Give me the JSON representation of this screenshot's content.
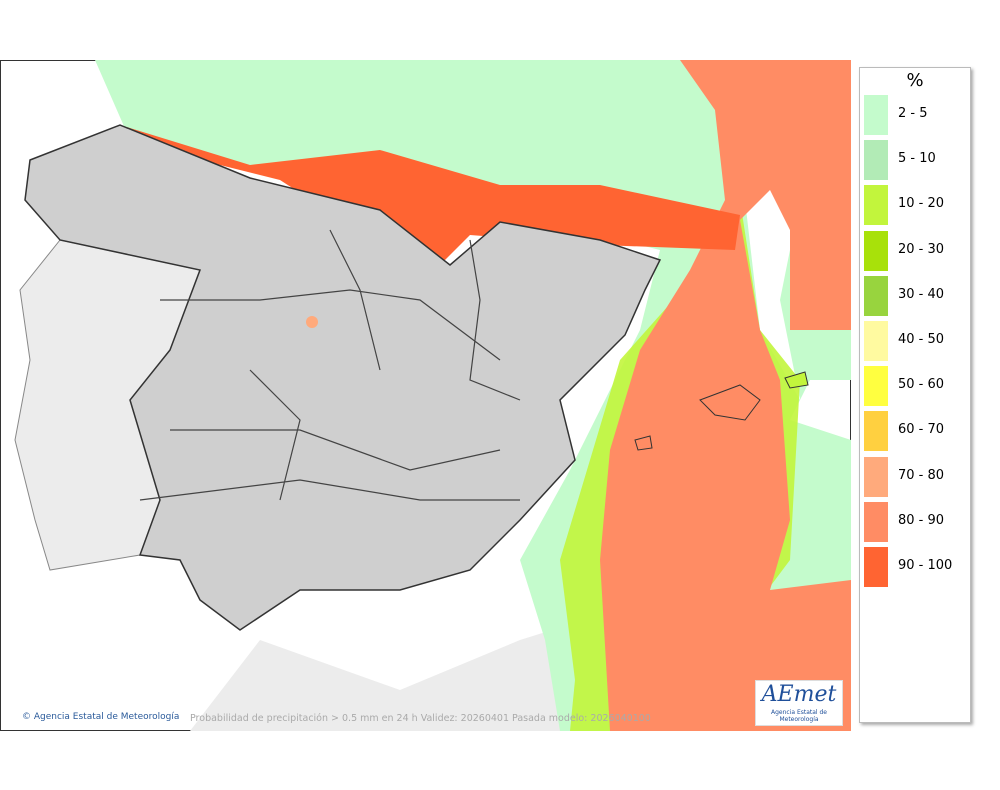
{
  "map": {
    "copyright": "Agencia Estatal de Meteorología",
    "caption": "Probabilidad de precipitación > 0.5 mm en 24 h Validez: 20260401 Pasada modelo: 2026040100",
    "logo": {
      "name": "AEmet",
      "subtitle": "Agencia Estatal de Meteorología"
    }
  },
  "legend": {
    "title": "%",
    "items": [
      {
        "label": "2 - 5",
        "color": "#c4fbcc"
      },
      {
        "label": "5 - 10",
        "color": "#b2ebb6"
      },
      {
        "label": "10 - 20",
        "color": "#c2f53c"
      },
      {
        "label": "20 - 30",
        "color": "#a8e10a"
      },
      {
        "label": "30 - 40",
        "color": "#98d43e"
      },
      {
        "label": "40 - 50",
        "color": "#fffaa0"
      },
      {
        "label": "50 - 60",
        "color": "#ffff40"
      },
      {
        "label": "60 - 70",
        "color": "#ffd040"
      },
      {
        "label": "70 - 80",
        "color": "#ffaa7c"
      },
      {
        "label": "80 - 90",
        "color": "#ff8c64"
      },
      {
        "label": "90 - 100",
        "color": "#ff6432"
      }
    ]
  }
}
